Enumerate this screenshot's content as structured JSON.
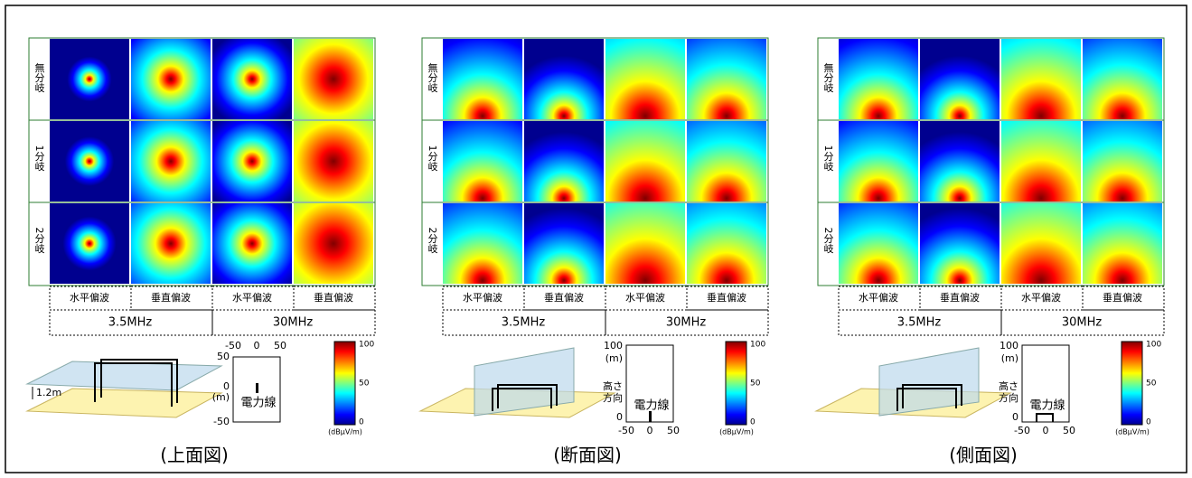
{
  "panels": [
    {
      "caption": "(上面図)",
      "rows": [
        "無分岐",
        "1分岐",
        "2分岐"
      ],
      "columns": [
        "水平偏波",
        "垂直偏波",
        "水平偏波",
        "垂直偏波"
      ],
      "bands": [
        "3.5MHz",
        "30MHz"
      ],
      "height_label": "1.2m",
      "axes": {
        "x_ticks": [
          "-50",
          "0",
          "50"
        ],
        "y_labels": [
          "50",
          "0",
          "(m)",
          "-50"
        ],
        "line_label": "電力線"
      },
      "colorbar": {
        "ticks": [
          "100",
          "50",
          "0"
        ],
        "unit": "(dBμV/m)"
      }
    },
    {
      "caption": "(断面図)",
      "rows": [
        "無分岐",
        "1分岐",
        "2分岐"
      ],
      "columns": [
        "水平偏波",
        "垂直偏波",
        "水平偏波",
        "垂直偏波"
      ],
      "bands": [
        "3.5MHz",
        "30MHz"
      ],
      "axes": {
        "x_ticks": [
          "-50",
          "0",
          "50"
        ],
        "y_labels": [
          "100",
          "(m)",
          "高さ",
          "方向",
          "0"
        ],
        "line_label": "電力線"
      },
      "colorbar": {
        "ticks": [
          "100",
          "50",
          "0"
        ],
        "unit": "(dBμV/m)"
      }
    },
    {
      "caption": "(側面図)",
      "rows": [
        "無分岐",
        "1分岐",
        "2分岐"
      ],
      "columns": [
        "水平偏波",
        "垂直偏波",
        "水平偏波",
        "垂直偏波"
      ],
      "bands": [
        "3.5MHz",
        "30MHz"
      ],
      "axes": {
        "x_ticks": [
          "-50",
          "0",
          "50"
        ],
        "y_labels": [
          "100",
          "(m)",
          "高さ",
          "方向",
          "0"
        ],
        "line_label": "電力線"
      },
      "colorbar": {
        "ticks": [
          "100",
          "50",
          "0"
        ],
        "unit": "(dBμV/m)"
      }
    }
  ]
}
